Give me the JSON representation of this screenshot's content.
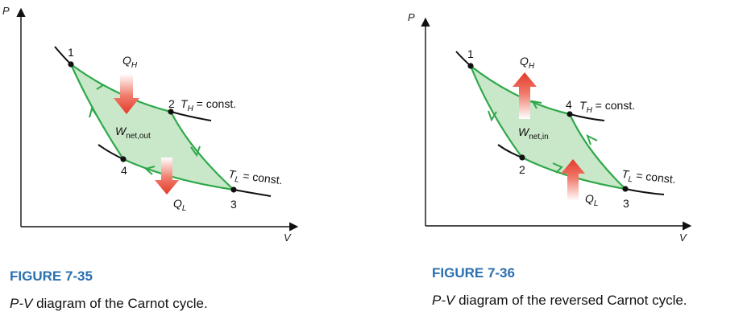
{
  "figure_left": {
    "axis_p": "P",
    "axis_v": "V",
    "points": [
      "1",
      "2",
      "3",
      "4"
    ],
    "q_high_main": "Q",
    "q_high_sub": "H",
    "q_low_main": "Q",
    "q_low_sub": "L",
    "work_main": "W",
    "work_sub": "net,out",
    "iso_high_main": "T",
    "iso_high_sub": "H",
    "iso_high_rest": " = const.",
    "iso_low_main": "T",
    "iso_low_sub": "L",
    "iso_low_rest": " = const.",
    "fig_number": "FIGURE 7-35",
    "caption_italic": "P-V",
    "caption_rest": " diagram of the Carnot cycle."
  },
  "figure_right": {
    "axis_p": "P",
    "axis_v": "V",
    "points": [
      "1",
      "4",
      "3",
      "2"
    ],
    "q_high_main": "Q",
    "q_high_sub": "H",
    "q_low_main": "Q",
    "q_low_sub": "L",
    "work_main": "W",
    "work_sub": "net,in",
    "iso_high_main": "T",
    "iso_high_sub": "H",
    "iso_high_rest": " = const.",
    "iso_low_main": "T",
    "iso_low_sub": "L",
    "iso_low_rest": " = const.",
    "fig_number": "FIGURE 7-36",
    "caption_italic": "P-V",
    "caption_rest": " diagram of the reversed Carnot cycle."
  },
  "colors": {
    "cycle_fill": "#c9e8c9",
    "cycle_line": "#2fa84a",
    "isotherm": "#111111",
    "heat_arrow": "#e9463a",
    "figure_number": "#2a6fb0"
  }
}
